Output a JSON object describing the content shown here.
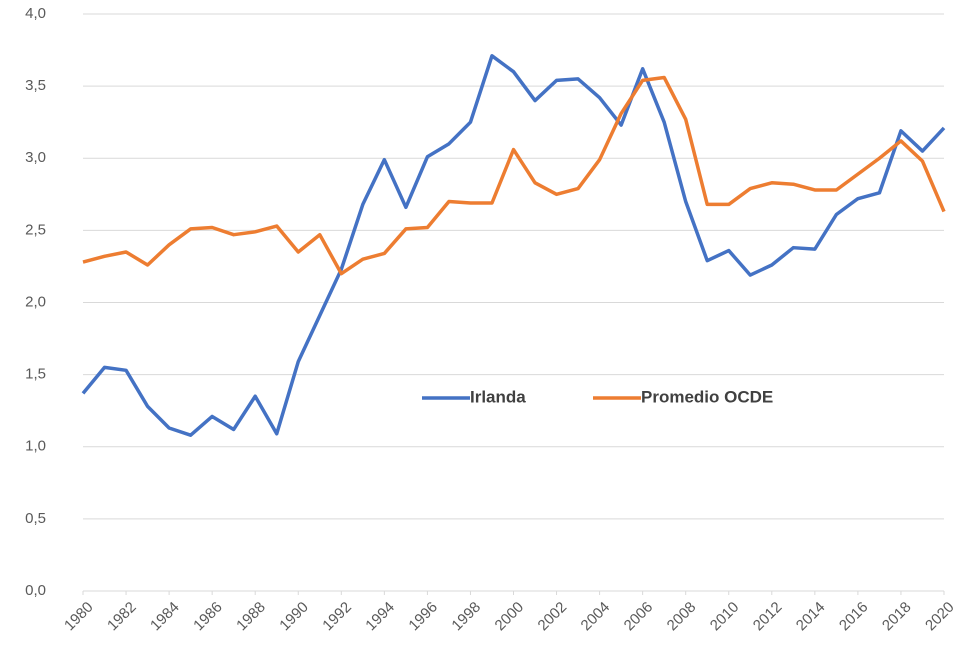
{
  "chart_data": {
    "type": "line",
    "x": [
      1980,
      1981,
      1982,
      1983,
      1984,
      1985,
      1986,
      1987,
      1988,
      1989,
      1990,
      1991,
      1992,
      1993,
      1994,
      1995,
      1996,
      1997,
      1998,
      1999,
      2000,
      2001,
      2002,
      2003,
      2004,
      2005,
      2006,
      2007,
      2008,
      2009,
      2010,
      2011,
      2012,
      2013,
      2014,
      2015,
      2016,
      2017,
      2018,
      2019,
      2020
    ],
    "series": [
      {
        "name": "Irlanda",
        "color": "#4472c4",
        "values": [
          1.37,
          1.55,
          1.53,
          1.28,
          1.13,
          1.08,
          1.21,
          1.12,
          1.35,
          1.09,
          1.59,
          1.91,
          2.23,
          2.68,
          2.99,
          2.66,
          3.01,
          3.1,
          3.25,
          3.71,
          3.6,
          3.4,
          3.54,
          3.55,
          3.42,
          3.23,
          3.62,
          3.25,
          2.7,
          2.29,
          2.36,
          2.19,
          2.26,
          2.38,
          2.37,
          2.61,
          2.72,
          2.76,
          3.19,
          3.05,
          3.21
        ]
      },
      {
        "name": "Promedio OCDE",
        "color": "#ed7d31",
        "values": [
          2.28,
          2.32,
          2.35,
          2.26,
          2.4,
          2.51,
          2.52,
          2.47,
          2.49,
          2.53,
          2.35,
          2.47,
          2.2,
          2.3,
          2.34,
          2.51,
          2.52,
          2.7,
          2.69,
          2.69,
          3.06,
          2.83,
          2.75,
          2.79,
          2.99,
          3.31,
          3.54,
          3.56,
          3.27,
          2.68,
          2.68,
          2.79,
          2.83,
          2.82,
          2.78,
          2.78,
          2.89,
          3.0,
          3.12,
          2.98,
          2.63
        ]
      }
    ],
    "xlim": [
      1980,
      2020
    ],
    "xticks": [
      1980,
      1982,
      1984,
      1986,
      1988,
      1990,
      1992,
      1994,
      1996,
      1998,
      2000,
      2002,
      2004,
      2006,
      2008,
      2010,
      2012,
      2014,
      2016,
      2018,
      2020
    ],
    "ylim": [
      0,
      4
    ],
    "yticks": [
      {
        "value": 0,
        "label": "0,0"
      },
      {
        "value": 0.5,
        "label": "0,5"
      },
      {
        "value": 1,
        "label": "1,0"
      },
      {
        "value": 1.5,
        "label": "1,5"
      },
      {
        "value": 2,
        "label": "2,0"
      },
      {
        "value": 2.5,
        "label": "2,5"
      },
      {
        "value": 3,
        "label": "3,0"
      },
      {
        "value": 3.5,
        "label": "3,5"
      },
      {
        "value": 4,
        "label": "4,0"
      }
    ],
    "grid": true,
    "legend": "center"
  }
}
